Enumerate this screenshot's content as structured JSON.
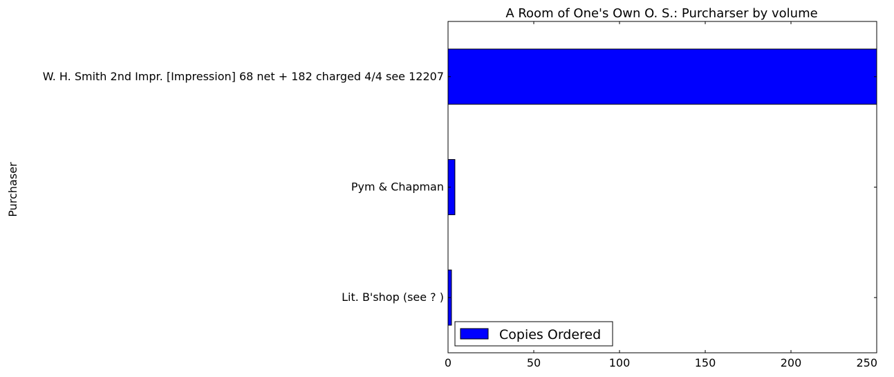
{
  "chart_data": {
    "type": "bar",
    "orientation": "horizontal",
    "title": "A Room of One's Own O. S.: Purcharser by volume",
    "xlabel": "",
    "ylabel": "Purchaser",
    "categories": [
      "W. H. Smith 2nd Impr. [Impression] 68 net + 182 charged 4/4 see 12207",
      "Pym & Chapman",
      "Lit. B'shop (see ? )"
    ],
    "series": [
      {
        "name": "Copies Ordered",
        "values": [
          250,
          4,
          2
        ],
        "color": "#0000ff"
      }
    ],
    "xlim": [
      0,
      250
    ],
    "xticks": [
      0,
      50,
      100,
      150,
      200,
      250
    ],
    "xtick_labels": [
      "0",
      "50",
      "100",
      "150",
      "200",
      "250"
    ],
    "grid": false,
    "legend": {
      "position": "lower-left"
    }
  }
}
